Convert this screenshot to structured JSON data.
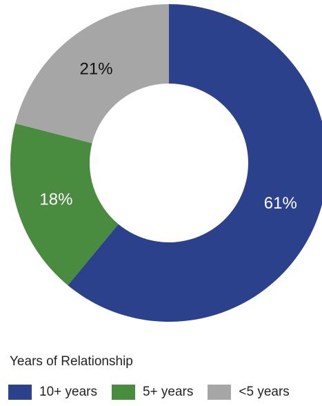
{
  "chart_data": {
    "type": "pie",
    "style": "donut",
    "title": "",
    "series": [
      {
        "values": [
          61,
          18,
          21
        ]
      }
    ],
    "categories": [
      "10+ years",
      "5+ years",
      "<5 years"
    ],
    "value_labels": [
      "61%",
      "18%",
      "21%"
    ],
    "colors": [
      "#2b418b",
      "#4a8c3f",
      "#a6a6a6"
    ],
    "label_colors": [
      "#ffffff",
      "#ffffff",
      "#111111"
    ],
    "start": "top",
    "direction": "clockwise",
    "legend": {
      "title": "Years of Relationship",
      "placement": "bottom-left"
    }
  }
}
